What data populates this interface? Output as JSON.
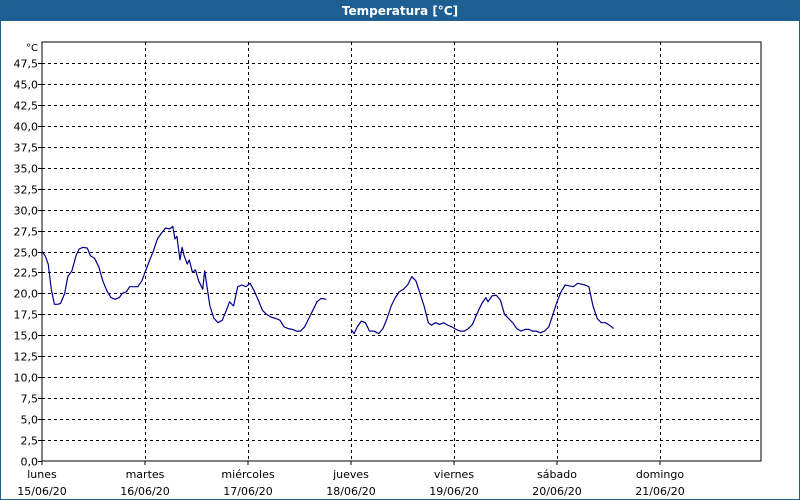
{
  "window": {
    "title": "Temperatura [°C]"
  },
  "chart_data": {
    "type": "line",
    "title": "Temperatura [°C]",
    "y_unit": "°C",
    "ylim": [
      0,
      50
    ],
    "y_tick_labels": [
      "0,0",
      "2,5",
      "5,0",
      "7,5",
      "10,0",
      "12,5",
      "15,0",
      "17,5",
      "20,0",
      "22,5",
      "25,0",
      "27,5",
      "30,0",
      "32,5",
      "35,0",
      "37,5",
      "40,0",
      "42,5",
      "45,0",
      "47,5"
    ],
    "x_day_labels": [
      {
        "day": "lunes",
        "date": "15/06/20"
      },
      {
        "day": "martes",
        "date": "16/06/20"
      },
      {
        "day": "miércoles",
        "date": "17/06/20"
      },
      {
        "day": "jueves",
        "date": "18/06/20"
      },
      {
        "day": "viernes",
        "date": "19/06/20"
      },
      {
        "day": "sábado",
        "date": "20/06/20"
      },
      {
        "day": "domingo",
        "date": "21/06/20"
      }
    ],
    "grid": true,
    "line_color": "#00008b",
    "series": [
      {
        "segments": [
          [
            [
              0,
              25.0
            ],
            [
              0.03,
              24.5
            ],
            [
              0.06,
              23.5
            ],
            [
              0.09,
              20.5
            ],
            [
              0.12,
              18.7
            ],
            [
              0.15,
              18.7
            ],
            [
              0.18,
              18.8
            ],
            [
              0.22,
              20.0
            ],
            [
              0.25,
              22.0
            ],
            [
              0.29,
              22.7
            ],
            [
              0.33,
              24.5
            ],
            [
              0.36,
              25.3
            ],
            [
              0.4,
              25.5
            ],
            [
              0.44,
              25.4
            ],
            [
              0.47,
              24.5
            ],
            [
              0.51,
              24.2
            ],
            [
              0.55,
              23.2
            ],
            [
              0.59,
              21.5
            ],
            [
              0.63,
              20.3
            ],
            [
              0.67,
              19.5
            ],
            [
              0.71,
              19.3
            ],
            [
              0.75,
              19.5
            ],
            [
              0.78,
              20.0
            ],
            [
              0.82,
              20.2
            ],
            [
              0.85,
              20.8
            ],
            [
              0.89,
              20.8
            ],
            [
              0.93,
              20.8
            ],
            [
              0.97,
              21.5
            ],
            [
              1.0,
              22.5
            ],
            [
              1.04,
              23.8
            ],
            [
              1.08,
              25.0
            ],
            [
              1.12,
              26.5
            ],
            [
              1.16,
              27.2
            ],
            [
              1.2,
              27.8
            ],
            [
              1.24,
              27.7
            ],
            [
              1.27,
              28.0
            ],
            [
              1.29,
              26.5
            ],
            [
              1.31,
              26.8
            ],
            [
              1.34,
              24.0
            ],
            [
              1.36,
              25.5
            ],
            [
              1.38,
              24.5
            ],
            [
              1.41,
              23.5
            ],
            [
              1.43,
              24.0
            ],
            [
              1.46,
              22.5
            ],
            [
              1.49,
              22.8
            ],
            [
              1.52,
              21.5
            ],
            [
              1.56,
              20.5
            ],
            [
              1.58,
              22.7
            ],
            [
              1.6,
              21.0
            ],
            [
              1.63,
              18.5
            ],
            [
              1.67,
              17.0
            ],
            [
              1.71,
              16.5
            ],
            [
              1.75,
              16.8
            ],
            [
              1.79,
              18.0
            ],
            [
              1.82,
              19.0
            ],
            [
              1.86,
              18.5
            ],
            [
              1.9,
              20.8
            ],
            [
              1.94,
              21.0
            ],
            [
              1.98,
              20.8
            ],
            [
              2.02,
              21.2
            ],
            [
              2.06,
              20.3
            ],
            [
              2.1,
              19.2
            ],
            [
              2.14,
              18.0
            ],
            [
              2.18,
              17.5
            ],
            [
              2.22,
              17.2
            ],
            [
              2.27,
              17.0
            ],
            [
              2.31,
              16.8
            ],
            [
              2.35,
              16.0
            ],
            [
              2.39,
              15.8
            ],
            [
              2.43,
              15.7
            ],
            [
              2.47,
              15.5
            ],
            [
              2.51,
              15.5
            ],
            [
              2.55,
              16.0
            ],
            [
              2.59,
              17.0
            ],
            [
              2.63,
              18.0
            ],
            [
              2.67,
              19.0
            ],
            [
              2.71,
              19.4
            ],
            [
              2.76,
              19.3
            ]
          ],
          [
            [
              3.0,
              15.7
            ],
            [
              3.03,
              15.2
            ],
            [
              3.06,
              16.0
            ],
            [
              3.1,
              16.7
            ],
            [
              3.14,
              16.5
            ],
            [
              3.18,
              15.5
            ],
            [
              3.22,
              15.5
            ],
            [
              3.27,
              15.2
            ],
            [
              3.31,
              15.8
            ],
            [
              3.35,
              17.0
            ],
            [
              3.39,
              18.5
            ],
            [
              3.43,
              19.5
            ],
            [
              3.47,
              20.2
            ],
            [
              3.51,
              20.5
            ],
            [
              3.55,
              21.0
            ],
            [
              3.59,
              22.0
            ],
            [
              3.63,
              21.5
            ],
            [
              3.67,
              20.0
            ],
            [
              3.71,
              18.5
            ],
            [
              3.75,
              16.5
            ],
            [
              3.78,
              16.2
            ],
            [
              3.82,
              16.5
            ],
            [
              3.86,
              16.3
            ],
            [
              3.9,
              16.5
            ],
            [
              3.94,
              16.2
            ],
            [
              3.98,
              16.0
            ],
            [
              4.02,
              15.7
            ],
            [
              4.06,
              15.5
            ],
            [
              4.1,
              15.5
            ],
            [
              4.14,
              15.8
            ],
            [
              4.18,
              16.3
            ],
            [
              4.22,
              17.5
            ],
            [
              4.27,
              18.8
            ],
            [
              4.31,
              19.5
            ],
            [
              4.33,
              19.0
            ],
            [
              4.37,
              19.7
            ],
            [
              4.41,
              19.8
            ],
            [
              4.45,
              19.2
            ],
            [
              4.49,
              17.5
            ],
            [
              4.53,
              17.0
            ],
            [
              4.57,
              16.5
            ],
            [
              4.61,
              15.8
            ],
            [
              4.65,
              15.5
            ],
            [
              4.69,
              15.7
            ],
            [
              4.73,
              15.7
            ],
            [
              4.76,
              15.5
            ],
            [
              4.8,
              15.5
            ],
            [
              4.84,
              15.3
            ],
            [
              4.88,
              15.5
            ],
            [
              4.92,
              16.0
            ],
            [
              4.96,
              17.5
            ],
            [
              5.0,
              19.0
            ],
            [
              5.04,
              20.2
            ],
            [
              5.08,
              21.0
            ],
            [
              5.12,
              20.9
            ],
            [
              5.16,
              20.8
            ],
            [
              5.2,
              21.2
            ],
            [
              5.24,
              21.1
            ],
            [
              5.27,
              21.0
            ],
            [
              5.31,
              20.8
            ],
            [
              5.35,
              18.5
            ],
            [
              5.39,
              17.0
            ],
            [
              5.43,
              16.5
            ],
            [
              5.47,
              16.5
            ],
            [
              5.51,
              16.2
            ],
            [
              5.55,
              15.8
            ]
          ]
        ]
      }
    ]
  }
}
